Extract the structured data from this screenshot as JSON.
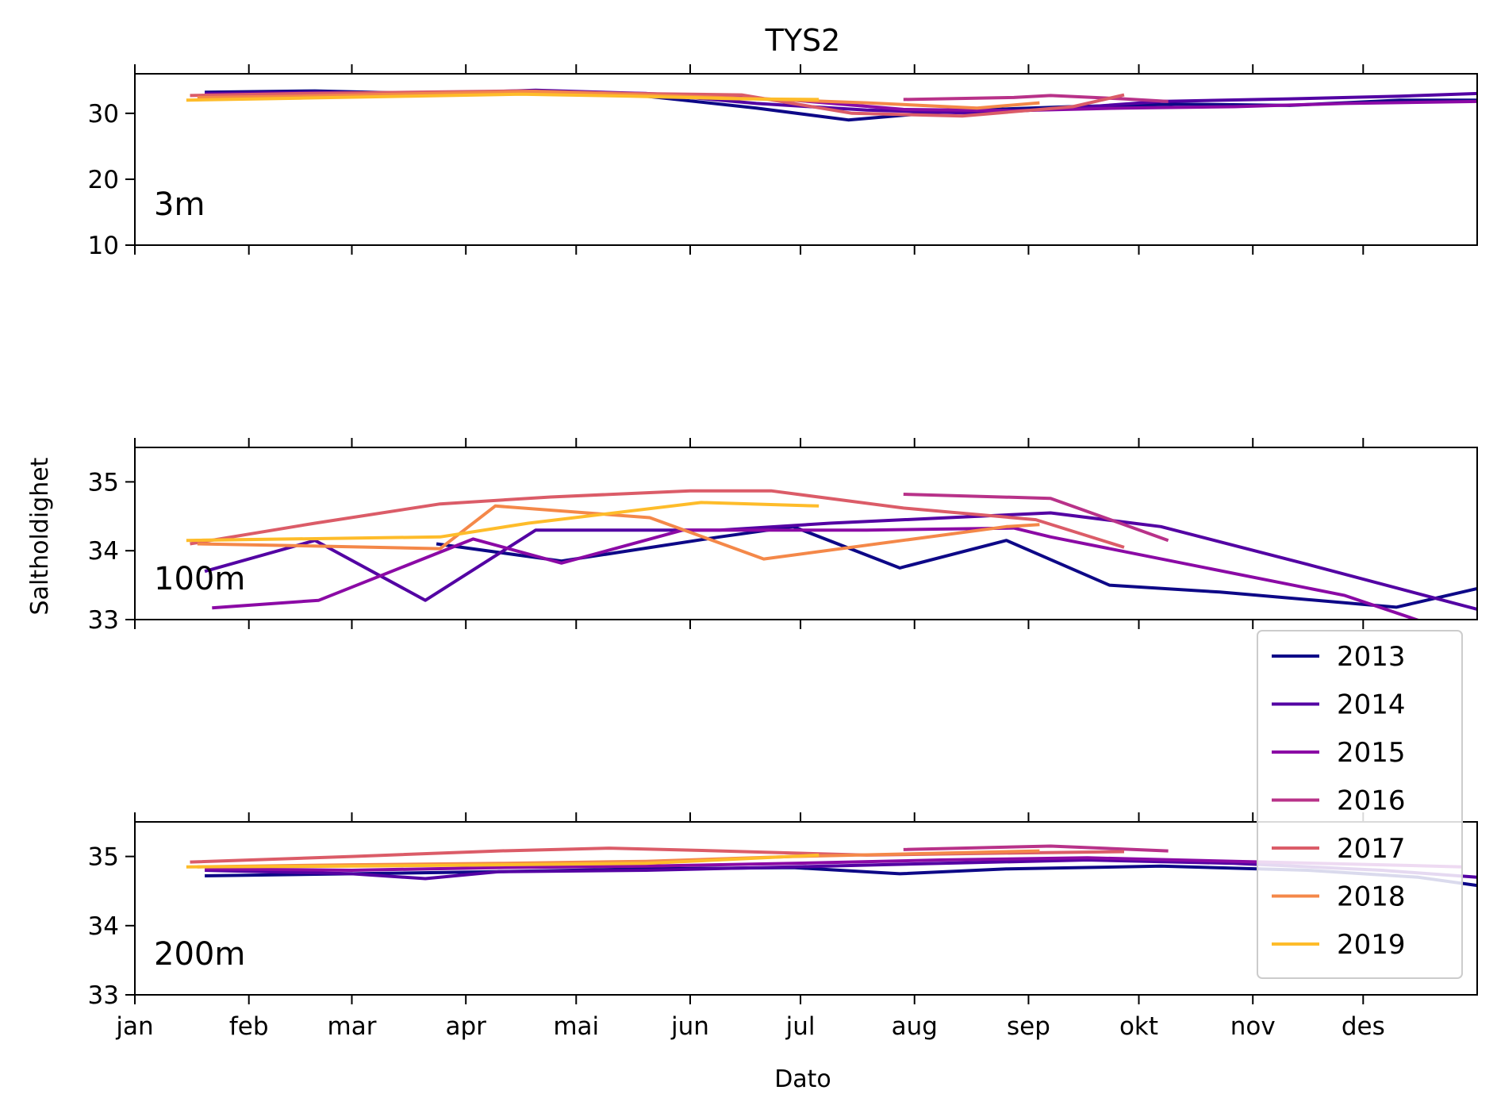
{
  "title": "TYS2",
  "xlabel": "Dato",
  "ylabel": "Saltholdighet",
  "x_ticks": [
    "jan",
    "feb",
    "mar",
    "apr",
    "mai",
    "jun",
    "jul",
    "aug",
    "sep",
    "okt",
    "nov",
    "des"
  ],
  "legend": {
    "placement": "right, between middle and bottom panels",
    "entries": [
      {
        "label": "2013",
        "color": "#0d0887"
      },
      {
        "label": "2014",
        "color": "#5302a3"
      },
      {
        "label": "2015",
        "color": "#8b0aa5"
      },
      {
        "label": "2016",
        "color": "#b83289"
      },
      {
        "label": "2017",
        "color": "#db5c68"
      },
      {
        "label": "2018",
        "color": "#f48849"
      },
      {
        "label": "2019",
        "color": "#febc2a"
      }
    ]
  },
  "chart_data": [
    {
      "type": "line",
      "panel_label": "3m",
      "xlim": [
        1,
        366
      ],
      "ylim": [
        10,
        36
      ],
      "yticks": [
        10,
        20,
        30
      ],
      "series": [
        {
          "name": "2013",
          "x": [
            20,
            50,
            80,
            110,
            140,
            170,
            195,
            225,
            255,
            285,
            315,
            345,
            366
          ],
          "y": [
            33.2,
            33.4,
            33.0,
            33.2,
            32.6,
            30.8,
            29.0,
            30.4,
            31.0,
            31.4,
            31.2,
            32.0,
            32.0
          ]
        },
        {
          "name": "2014",
          "x": [
            20,
            50,
            80,
            110,
            140,
            170,
            200,
            230,
            255,
            280,
            315,
            345,
            366
          ],
          "y": [
            33.0,
            33.2,
            33.0,
            33.5,
            33.0,
            31.5,
            30.5,
            30.0,
            30.8,
            31.8,
            32.2,
            32.6,
            33.0
          ]
        },
        {
          "name": "2015",
          "x": [
            20,
            60,
            100,
            140,
            180,
            210,
            240,
            270,
            300,
            330,
            366
          ],
          "y": [
            32.8,
            33.0,
            33.2,
            33.0,
            32.0,
            30.6,
            30.4,
            30.8,
            31.0,
            31.5,
            31.8
          ]
        },
        {
          "name": "2016",
          "x": [
            210,
            240,
            250,
            270,
            282
          ],
          "y": [
            32.1,
            32.4,
            32.7,
            32.2,
            31.8
          ]
        },
        {
          "name": "2017",
          "x": [
            16,
            46,
            76,
            106,
            136,
            166,
            196,
            226,
            256,
            270
          ],
          "y": [
            32.7,
            33.0,
            33.2,
            33.4,
            33.0,
            32.8,
            30.0,
            29.6,
            31.0,
            32.8
          ]
        },
        {
          "name": "2018",
          "x": [
            18,
            46,
            80,
            110,
            140,
            170,
            200,
            230,
            247
          ],
          "y": [
            32.4,
            32.6,
            33.0,
            33.3,
            32.8,
            32.2,
            31.6,
            30.8,
            31.6
          ]
        },
        {
          "name": "2019",
          "x": [
            15,
            46,
            76,
            106,
            136,
            166,
            187
          ],
          "y": [
            32.0,
            32.3,
            32.6,
            32.9,
            32.6,
            32.2,
            32.1
          ]
        }
      ]
    },
    {
      "type": "line",
      "panel_label": "100m",
      "xlim": [
        1,
        366
      ],
      "ylim": [
        33,
        35.5
      ],
      "yticks": [
        33,
        34,
        35
      ],
      "series": [
        {
          "name": "2013",
          "x": [
            83,
            117,
            160,
            180,
            209,
            238,
            266,
            296,
            344,
            366
          ],
          "y": [
            34.1,
            33.85,
            34.2,
            34.35,
            33.75,
            34.15,
            33.5,
            33.4,
            33.18,
            33.45
          ]
        },
        {
          "name": "2014",
          "x": [
            20,
            50,
            80,
            110,
            160,
            190,
            250,
            280,
            320,
            366
          ],
          "y": [
            33.7,
            34.15,
            33.28,
            34.3,
            34.3,
            34.4,
            34.55,
            34.35,
            33.8,
            33.15
          ]
        },
        {
          "name": "2015",
          "x": [
            22,
            51,
            93,
            117,
            150,
            200,
            240,
            250,
            330,
            355
          ],
          "y": [
            33.17,
            33.28,
            34.17,
            33.82,
            34.3,
            34.3,
            34.33,
            34.2,
            33.35,
            32.9
          ]
        },
        {
          "name": "2016",
          "x": [
            210,
            250,
            282
          ],
          "y": [
            34.82,
            34.76,
            34.15
          ]
        },
        {
          "name": "2017",
          "x": [
            16,
            50,
            84,
            114,
            152,
            174,
            210,
            246,
            270
          ],
          "y": [
            34.1,
            34.4,
            34.68,
            34.78,
            34.87,
            34.87,
            34.62,
            34.45,
            34.05
          ]
        },
        {
          "name": "2018",
          "x": [
            18,
            48,
            84,
            99,
            141,
            172,
            238,
            247
          ],
          "y": [
            34.1,
            34.07,
            34.03,
            34.65,
            34.48,
            33.88,
            34.35,
            34.38
          ]
        },
        {
          "name": "2019",
          "x": [
            15,
            84,
            108,
            155,
            187
          ],
          "y": [
            34.15,
            34.2,
            34.4,
            34.7,
            34.65
          ]
        }
      ]
    },
    {
      "type": "line",
      "panel_label": "200m",
      "xlim": [
        1,
        366
      ],
      "ylim": [
        33,
        35.5
      ],
      "yticks": [
        33,
        34,
        35
      ],
      "series": [
        {
          "name": "2013",
          "x": [
            20,
            60,
            100,
            140,
            180,
            209,
            238,
            280,
            320,
            350,
            366
          ],
          "y": [
            34.72,
            34.75,
            34.78,
            34.82,
            34.84,
            34.75,
            34.82,
            34.86,
            34.8,
            34.7,
            34.58
          ]
        },
        {
          "name": "2014",
          "x": [
            20,
            60,
            80,
            100,
            140,
            180,
            220,
            260,
            300,
            340,
            366
          ],
          "y": [
            34.8,
            34.75,
            34.68,
            34.78,
            34.8,
            34.85,
            34.9,
            34.95,
            34.9,
            34.8,
            34.7
          ]
        },
        {
          "name": "2015",
          "x": [
            20,
            60,
            100,
            140,
            180,
            220,
            260,
            300,
            340,
            362
          ],
          "y": [
            34.82,
            34.8,
            34.84,
            34.86,
            34.9,
            34.95,
            34.98,
            34.93,
            34.88,
            34.85
          ]
        },
        {
          "name": "2016",
          "x": [
            210,
            250,
            282
          ],
          "y": [
            35.1,
            35.15,
            35.08
          ]
        },
        {
          "name": "2017",
          "x": [
            16,
            60,
            100,
            130,
            160,
            200,
            240,
            270
          ],
          "y": [
            34.92,
            35.0,
            35.08,
            35.12,
            35.08,
            35.02,
            35.05,
            35.07
          ]
        },
        {
          "name": "2018",
          "x": [
            18,
            60,
            100,
            140,
            180,
            247
          ],
          "y": [
            34.85,
            34.88,
            34.9,
            34.93,
            35.0,
            35.08
          ]
        },
        {
          "name": "2019",
          "x": [
            15,
            60,
            100,
            140,
            187
          ],
          "y": [
            34.85,
            34.86,
            34.88,
            34.9,
            35.02
          ]
        }
      ]
    }
  ]
}
